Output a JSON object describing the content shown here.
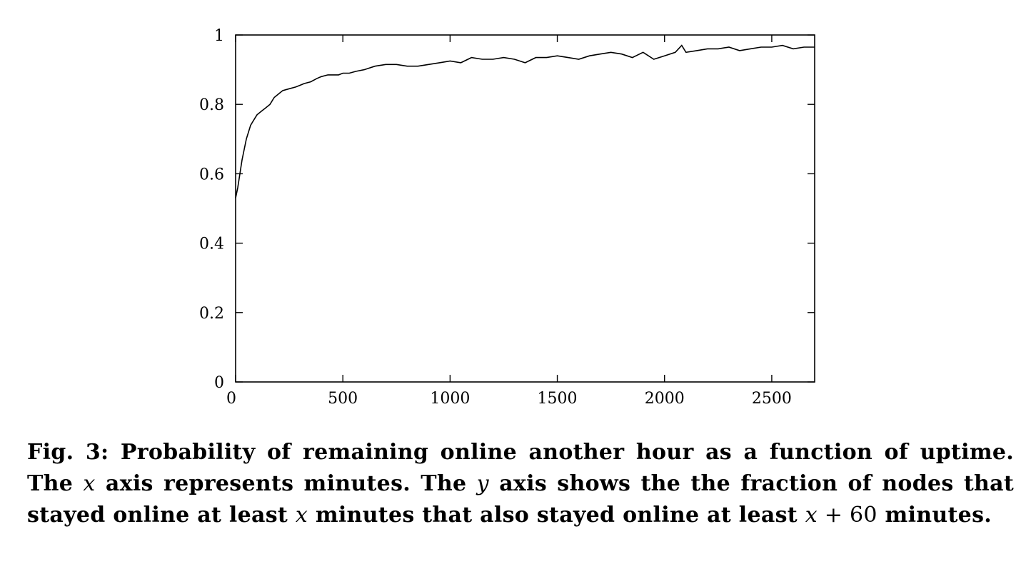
{
  "chart_data": {
    "type": "line",
    "xlim": [
      0,
      2700
    ],
    "ylim": [
      0,
      1
    ],
    "grid": false,
    "x_ticks": [
      0,
      500,
      1000,
      1500,
      2000,
      2500
    ],
    "x_tick_labels": [
      "0",
      "500",
      "1000",
      "1500",
      "2000",
      "2500"
    ],
    "y_ticks": [
      0,
      0.2,
      0.4,
      0.6,
      0.8,
      1
    ],
    "y_tick_labels": [
      "0",
      "0.2",
      "0.4",
      "0.6",
      "0.8",
      "1"
    ],
    "series": [
      {
        "x": [
          0,
          10,
          20,
          30,
          40,
          50,
          60,
          70,
          80,
          90,
          100,
          120,
          140,
          160,
          180,
          200,
          220,
          250,
          280,
          300,
          320,
          350,
          380,
          400,
          430,
          450,
          480,
          500,
          530,
          560,
          600,
          650,
          700,
          750,
          800,
          850,
          900,
          950,
          1000,
          1050,
          1100,
          1150,
          1200,
          1250,
          1300,
          1350,
          1400,
          1450,
          1500,
          1550,
          1600,
          1650,
          1700,
          1750,
          1800,
          1850,
          1900,
          1950,
          2000,
          2050,
          2080,
          2100,
          2150,
          2200,
          2250,
          2300,
          2350,
          2400,
          2450,
          2500,
          2550,
          2600,
          2650,
          2700
        ],
        "y": [
          0.53,
          0.56,
          0.6,
          0.64,
          0.67,
          0.7,
          0.72,
          0.74,
          0.75,
          0.76,
          0.77,
          0.78,
          0.79,
          0.8,
          0.82,
          0.83,
          0.84,
          0.845,
          0.85,
          0.855,
          0.86,
          0.865,
          0.875,
          0.88,
          0.885,
          0.885,
          0.885,
          0.89,
          0.89,
          0.895,
          0.9,
          0.91,
          0.915,
          0.915,
          0.91,
          0.91,
          0.915,
          0.92,
          0.925,
          0.92,
          0.935,
          0.93,
          0.93,
          0.935,
          0.93,
          0.92,
          0.935,
          0.935,
          0.94,
          0.935,
          0.93,
          0.94,
          0.945,
          0.95,
          0.945,
          0.935,
          0.95,
          0.93,
          0.94,
          0.95,
          0.97,
          0.95,
          0.955,
          0.96,
          0.96,
          0.965,
          0.955,
          0.96,
          0.965,
          0.965,
          0.97,
          0.96,
          0.965,
          0.965
        ]
      }
    ]
  },
  "caption": {
    "part1": "Fig. 3: Probability of remaining online another hour as a function of uptime. The ",
    "var_x1": "x",
    "part2": " axis represents minutes. The ",
    "var_y": "y",
    "part3": " axis shows the the fraction of nodes that stayed online at least ",
    "var_x2": "x",
    "part4": " minutes that also stayed online at least ",
    "var_x3": "x",
    "plus60": " + 60",
    "part5": " minutes."
  }
}
